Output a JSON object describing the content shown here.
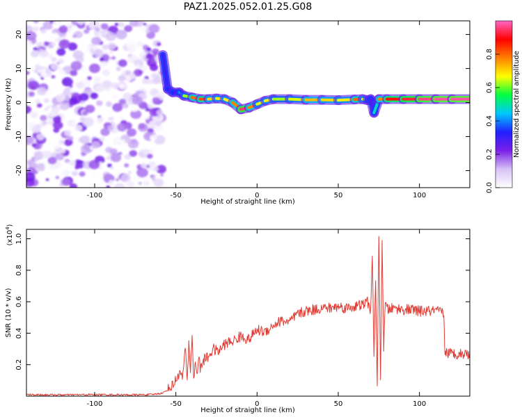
{
  "title": "PAZ1.2025.052.01.25.G08",
  "colors": {
    "snr_line": "#e03a32",
    "colormap": [
      "#ffffff",
      "#d7c2f7",
      "#7a1fe6",
      "#2020ff",
      "#00c8ff",
      "#00ff40",
      "#ffff00",
      "#ff8000",
      "#ff0000",
      "#ff66c4"
    ]
  },
  "chart_data": [
    {
      "type": "heatmap",
      "name": "spectrogram",
      "xlabel": "Height of straight line (km)",
      "ylabel": "Frequency (Hz)",
      "xlim": [
        -142,
        131
      ],
      "ylim": [
        -25,
        24
      ],
      "xticks": [
        -100,
        -50,
        0,
        50,
        100
      ],
      "xtick_labels": [
        "-100",
        "-50",
        "0",
        "50",
        "100"
      ],
      "yticks": [
        -20,
        -10,
        0,
        10,
        20
      ],
      "ytick_labels": [
        "-20",
        "-10",
        "0",
        "10",
        "20"
      ],
      "colorbar": {
        "label": "Normalized spectral amplitude",
        "range": [
          0,
          1
        ],
        "ticks": [
          0.0,
          0.2,
          0.4,
          0.6,
          0.8
        ],
        "tick_labels": [
          "0.0",
          "0.2",
          "0.4",
          "0.6",
          "0.8"
        ],
        "colormap": "rainbow-purple-white"
      },
      "noise_region_x": [
        -142,
        -58
      ],
      "ridge": {
        "x": [
          -58,
          -55,
          -52,
          -48,
          -45,
          -40,
          -35,
          -30,
          -25,
          -20,
          -15,
          -10,
          -5,
          0,
          5,
          10,
          20,
          30,
          40,
          50,
          60,
          65,
          68,
          70,
          72,
          75,
          80,
          90,
          100,
          110,
          120,
          131
        ],
        "freq": [
          14,
          4,
          3,
          3,
          2,
          1.5,
          1,
          1,
          1.2,
          1,
          0,
          -2,
          -1.5,
          -0.5,
          0.5,
          1,
          1,
          0.8,
          0.8,
          0.7,
          0.9,
          1,
          0.7,
          1,
          -3,
          1,
          1,
          1,
          1,
          1,
          1,
          1
        ],
        "amplitude": [
          0.3,
          0.3,
          0.35,
          0.3,
          0.5,
          0.75,
          0.85,
          0.8,
          0.6,
          0.75,
          0.6,
          0.95,
          0.95,
          0.6,
          0.7,
          0.65,
          0.6,
          0.7,
          0.75,
          0.65,
          0.7,
          0.9,
          0.4,
          0.3,
          0.25,
          0.7,
          0.85,
          0.9,
          0.95,
          0.98,
          0.98,
          0.98
        ]
      }
    },
    {
      "type": "line",
      "name": "snr",
      "xlabel": "Height of straight line (km)",
      "ylabel": "SNR (10 * v/v)",
      "y_multiplier": "(x10⁴)",
      "y_multiplier_base": "(x10",
      "y_multiplier_exp": "4",
      "y_multiplier_close": ")",
      "xlim": [
        -142,
        131
      ],
      "ylim": [
        0,
        1.06
      ],
      "xticks": [
        -100,
        -50,
        0,
        50,
        100
      ],
      "xtick_labels": [
        "-100",
        "-50",
        "0",
        "50",
        "100"
      ],
      "yticks": [
        0.2,
        0.4,
        0.6,
        0.8,
        1.0
      ],
      "ytick_labels": [
        "0.2",
        "0.4",
        "0.6",
        "0.8",
        "1.0"
      ],
      "series": [
        {
          "x": [
            -142,
            -120,
            -100,
            -80,
            -65,
            -58,
            -55,
            -52,
            -50,
            -48,
            -46,
            -44,
            -43,
            -42,
            -41,
            -40,
            -39,
            -38,
            -37,
            -36,
            -35,
            -33,
            -30,
            -27,
            -24,
            -20,
            -15,
            -10,
            -5,
            0,
            5,
            10,
            15,
            20,
            25,
            30,
            35,
            40,
            45,
            50,
            55,
            60,
            65,
            68,
            70,
            71,
            72,
            73,
            74,
            75,
            76,
            77,
            78,
            79,
            80,
            85,
            90,
            95,
            100,
            105,
            110,
            114,
            115,
            115.5,
            116,
            120,
            125,
            131
          ],
          "values": [
            0.01,
            0.008,
            0.01,
            0.008,
            0.01,
            0.02,
            0.04,
            0.07,
            0.1,
            0.15,
            0.12,
            0.3,
            0.08,
            0.36,
            0.15,
            0.4,
            0.1,
            0.22,
            0.14,
            0.25,
            0.17,
            0.23,
            0.25,
            0.3,
            0.28,
            0.33,
            0.35,
            0.38,
            0.36,
            0.42,
            0.41,
            0.45,
            0.48,
            0.47,
            0.52,
            0.54,
            0.55,
            0.56,
            0.56,
            0.57,
            0.56,
            0.57,
            0.58,
            0.6,
            0.55,
            0.88,
            0.25,
            0.75,
            0.05,
            1.05,
            0.08,
            0.98,
            0.3,
            0.6,
            0.55,
            0.56,
            0.55,
            0.55,
            0.54,
            0.54,
            0.54,
            0.53,
            0.53,
            0.3,
            0.28,
            0.27,
            0.27,
            0.27
          ]
        }
      ]
    }
  ]
}
